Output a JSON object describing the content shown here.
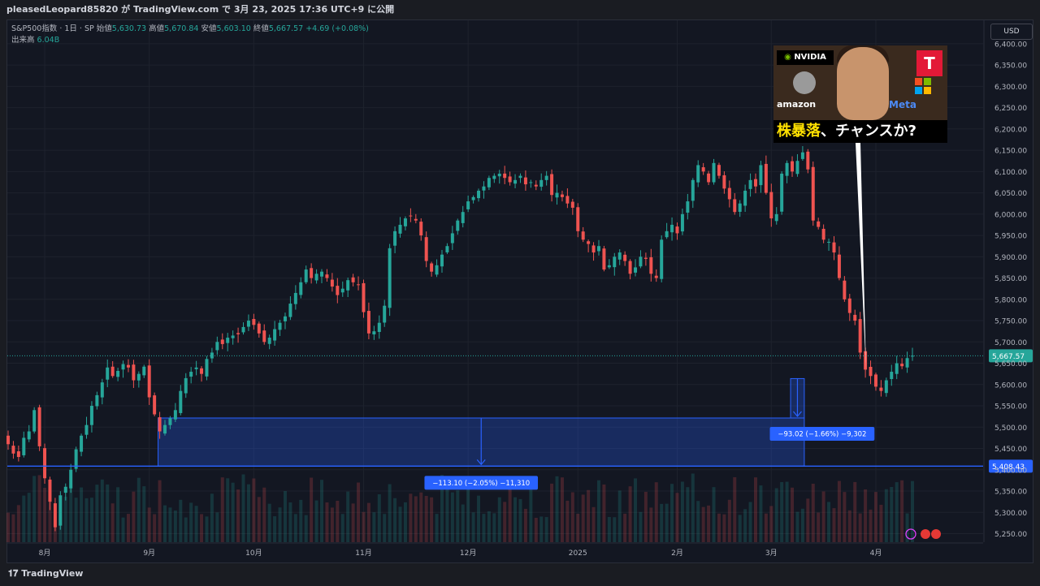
{
  "header": {
    "publish_line": "pleasedLeopard85820 が TradingView.com で 3月 23, 2025 17:36 UTC+9 に公開"
  },
  "legend": {
    "symbol": "S&P500指数 · 1日 · SP",
    "open_label": "始値",
    "open": "5,630.73",
    "high_label": "高値",
    "high": "5,670.84",
    "low_label": "安値",
    "low": "5,603.10",
    "close_label": "終値",
    "close": "5,667.57",
    "change": "+4.69 (+0.08%)",
    "volume_label": "出来高",
    "volume": "6.04B"
  },
  "currency_button": "USD",
  "footer": {
    "brand": "TradingView"
  },
  "thumbnail": {
    "brand_nvidia": "NVIDIA",
    "brand_amazon": "amazon",
    "brand_meta": "Meta",
    "brand_tesla": "T",
    "caption_yellow": "株暴落",
    "caption_white": "、チャンスか?"
  },
  "colors": {
    "up": "#26a69a",
    "down": "#ef5350",
    "measure_fill": "#2962ff",
    "last_price": "#26a69a",
    "background": "#131722"
  },
  "chart_data": {
    "type": "candlestick",
    "y_axis": {
      "range": [
        5230,
        6455
      ],
      "ticks": [
        "6,400.00",
        "6,350.00",
        "6,300.00",
        "6,250.00",
        "6,200.00",
        "6,150.00",
        "6,100.00",
        "6,050.00",
        "6,000.00",
        "5,950.00",
        "5,900.00",
        "5,850.00",
        "5,800.00",
        "5,750.00",
        "5,700.00",
        "5,650.00",
        "5,600.00",
        "5,550.00",
        "5,500.00",
        "5,450.00",
        "5,400.00",
        "5,350.00",
        "5,300.00",
        "5,250.00"
      ],
      "tick_values": [
        6400,
        6350,
        6300,
        6250,
        6200,
        6150,
        6100,
        6050,
        6000,
        5950,
        5900,
        5850,
        5800,
        5750,
        5700,
        5650,
        5600,
        5550,
        5500,
        5450,
        5400,
        5350,
        5300,
        5250
      ]
    },
    "x_axis": {
      "labels": [
        "8月",
        "9月",
        "10月",
        "11月",
        "12月",
        "2025",
        "2月",
        "3月",
        "4月"
      ],
      "label_index": [
        7,
        27,
        47,
        68,
        88,
        109,
        128,
        146,
        166
      ]
    },
    "last_price": {
      "value": 5667.57,
      "label": "5,667.57"
    },
    "level_line": {
      "value": 5408.43,
      "label": "5,408.43"
    },
    "measures": [
      {
        "label": "−113.10 (−2.05%) −11,310",
        "from_index": 29,
        "to_index": 152,
        "top": 5521.5,
        "bottom": 5408.4
      },
      {
        "label": "−93.02 (−1.66%) −9,302",
        "from_index": 150,
        "to_index": 152,
        "top": 5614,
        "bottom": 5521.5
      }
    ],
    "closes": [
      5460,
      5438,
      5430,
      5475,
      5490,
      5540,
      5455,
      5380,
      5325,
      5265,
      5340,
      5360,
      5400,
      5448,
      5480,
      5505,
      5550,
      5575,
      5605,
      5640,
      5620,
      5632,
      5648,
      5640,
      5610,
      5625,
      5642,
      5570,
      5530,
      5490,
      5505,
      5521,
      5540,
      5585,
      5615,
      5630,
      5640,
      5625,
      5660,
      5675,
      5700,
      5695,
      5710,
      5715,
      5718,
      5735,
      5750,
      5740,
      5720,
      5700,
      5710,
      5730,
      5745,
      5760,
      5790,
      5815,
      5840,
      5870,
      5850,
      5860,
      5865,
      5850,
      5830,
      5810,
      5825,
      5845,
      5840,
      5835,
      5770,
      5720,
      5725,
      5745,
      5785,
      5920,
      5960,
      5975,
      5990,
      5995,
      5985,
      5950,
      5890,
      5865,
      5880,
      5905,
      5925,
      5955,
      5985,
      6005,
      6030,
      6040,
      6055,
      6065,
      6085,
      6090,
      6095,
      6085,
      6075,
      6080,
      6090,
      6070,
      6075,
      6065,
      6080,
      6090,
      6045,
      6050,
      6040,
      6025,
      6015,
      5960,
      5940,
      5930,
      5910,
      5925,
      5870,
      5880,
      5900,
      5910,
      5890,
      5860,
      5875,
      5900,
      5895,
      5860,
      5850,
      5940,
      5960,
      5975,
      5955,
      6000,
      6030,
      6080,
      6115,
      6100,
      6075,
      6120,
      6090,
      6060,
      6035,
      6005,
      6025,
      6055,
      6080,
      6065,
      6115,
      6050,
      5990,
      6000,
      6095,
      6120,
      6100,
      6125,
      6145,
      6105,
      5985,
      5970,
      5940,
      5935,
      5910,
      5850,
      5800,
      5768,
      5750,
      5675,
      5635,
      5620,
      5595,
      5585,
      5610,
      5630,
      5650,
      5643,
      5662,
      5667.57
    ],
    "volume_scale_note": "Volume histogram shown as bars at bottom of price pane"
  }
}
